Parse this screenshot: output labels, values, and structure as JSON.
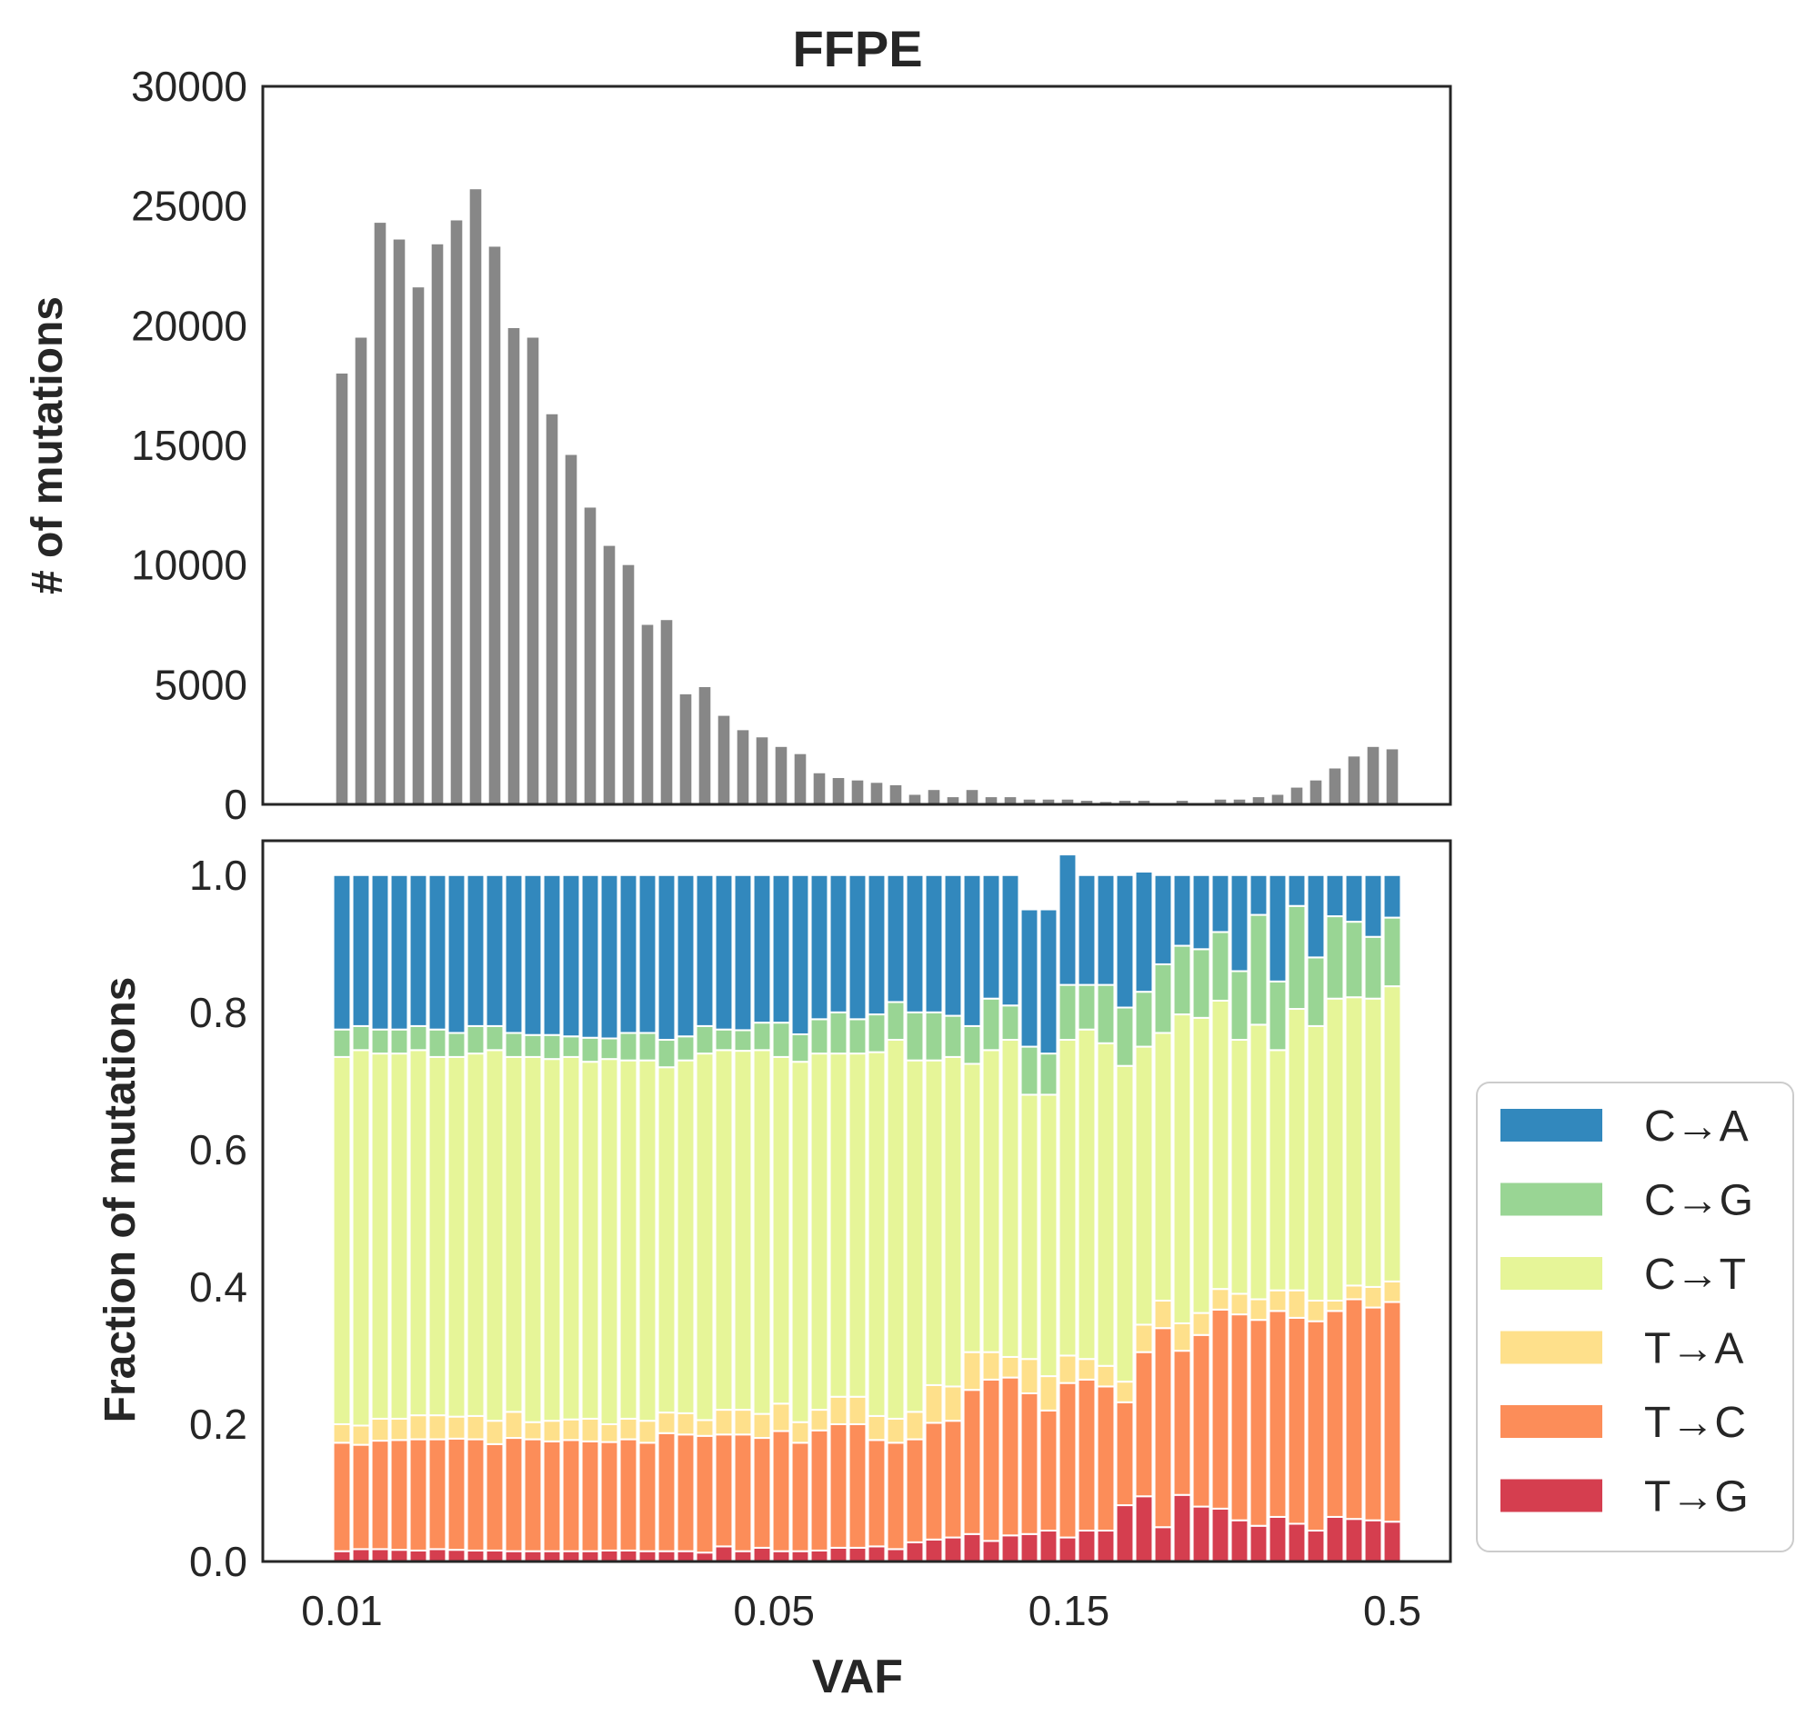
{
  "chart_data": [
    {
      "type": "bar",
      "title": "FFPE",
      "xlabel": "",
      "ylabel": "# of mutations",
      "ylim": [
        0,
        30000
      ],
      "yticks": [
        "0",
        "5000",
        "10000",
        "15000",
        "20000",
        "25000",
        "30000"
      ],
      "bar_color": "#878787",
      "counts": [
        18000,
        19500,
        24300,
        23600,
        21600,
        23400,
        24400,
        25700,
        23300,
        19900,
        19500,
        16300,
        14600,
        12400,
        10800,
        10000,
        7500,
        7700,
        4600,
        4900,
        3700,
        3100,
        2800,
        2400,
        2100,
        1300,
        1100,
        1000,
        900,
        800,
        400,
        600,
        300,
        600,
        300,
        300,
        200,
        200,
        200,
        150,
        100,
        150,
        150,
        0,
        150,
        0,
        200,
        200,
        300,
        400,
        700,
        1000,
        1500,
        2000,
        2400,
        2300
      ],
      "grid": false
    },
    {
      "type": "bar",
      "stacked": true,
      "xlabel": "VAF",
      "ylabel": "Fraction of mutations",
      "ylim": [
        0,
        1.05
      ],
      "yticks": [
        "0.0",
        "0.2",
        "0.4",
        "0.6",
        "0.8",
        "1.0"
      ],
      "x_scale": "log",
      "x_range": [
        0.01,
        0.5
      ],
      "xticks": [
        {
          "value": 0.01,
          "label": "0.01"
        },
        {
          "value": 0.05,
          "label": "0.05"
        },
        {
          "value": 0.15,
          "label": "0.15"
        },
        {
          "value": 0.5,
          "label": "0.5"
        }
      ],
      "legend_position": "outside-right",
      "grid": false,
      "series": [
        {
          "name": "T→G",
          "color": "#d53e4f",
          "values": [
            0.015,
            0.018,
            0.018,
            0.017,
            0.016,
            0.018,
            0.017,
            0.016,
            0.016,
            0.015,
            0.015,
            0.015,
            0.015,
            0.015,
            0.016,
            0.016,
            0.015,
            0.015,
            0.015,
            0.013,
            0.022,
            0.015,
            0.02,
            0.015,
            0.015,
            0.016,
            0.02,
            0.02,
            0.022,
            0.018,
            0.028,
            0.032,
            0.035,
            0.04,
            0.03,
            0.038,
            0.04,
            0.045,
            0.035,
            0.045,
            0.045,
            0.082,
            0.095,
            0.05,
            0.097,
            0.08,
            0.077,
            0.06,
            0.052,
            0.065,
            0.055,
            0.045,
            0.065,
            0.062,
            0.06,
            0.058
          ]
        },
        {
          "name": "T→C",
          "color": "#fc8d59",
          "values": [
            0.158,
            0.152,
            0.158,
            0.16,
            0.162,
            0.16,
            0.162,
            0.162,
            0.155,
            0.165,
            0.163,
            0.16,
            0.162,
            0.16,
            0.158,
            0.162,
            0.158,
            0.172,
            0.17,
            0.17,
            0.163,
            0.17,
            0.16,
            0.175,
            0.158,
            0.175,
            0.18,
            0.18,
            0.155,
            0.155,
            0.15,
            0.17,
            0.17,
            0.21,
            0.235,
            0.23,
            0.205,
            0.175,
            0.225,
            0.22,
            0.21,
            0.15,
            0.21,
            0.29,
            0.21,
            0.25,
            0.29,
            0.3,
            0.3,
            0.3,
            0.3,
            0.305,
            0.3,
            0.32,
            0.31,
            0.32
          ]
        },
        {
          "name": "T→A",
          "color": "#fee08b",
          "values": [
            0.027,
            0.028,
            0.032,
            0.031,
            0.035,
            0.035,
            0.032,
            0.034,
            0.034,
            0.038,
            0.025,
            0.03,
            0.03,
            0.033,
            0.026,
            0.03,
            0.032,
            0.03,
            0.031,
            0.023,
            0.036,
            0.036,
            0.035,
            0.04,
            0.03,
            0.03,
            0.04,
            0.04,
            0.035,
            0.035,
            0.04,
            0.055,
            0.05,
            0.055,
            0.04,
            0.03,
            0.05,
            0.05,
            0.04,
            0.03,
            0.03,
            0.03,
            0.04,
            0.04,
            0.04,
            0.032,
            0.03,
            0.03,
            0.03,
            0.03,
            0.04,
            0.03,
            0.015,
            0.02,
            0.03,
            0.03
          ]
        },
        {
          "name": "C→T",
          "color": "#e6f598",
          "values": [
            0.535,
            0.547,
            0.532,
            0.532,
            0.532,
            0.522,
            0.524,
            0.528,
            0.54,
            0.517,
            0.532,
            0.527,
            0.528,
            0.52,
            0.532,
            0.522,
            0.525,
            0.503,
            0.514,
            0.534,
            0.524,
            0.523,
            0.53,
            0.505,
            0.525,
            0.519,
            0.5,
            0.5,
            0.53,
            0.552,
            0.512,
            0.473,
            0.48,
            0.42,
            0.44,
            0.462,
            0.385,
            0.41,
            0.46,
            0.48,
            0.47,
            0.46,
            0.405,
            0.39,
            0.45,
            0.43,
            0.42,
            0.37,
            0.4,
            0.35,
            0.41,
            0.4,
            0.44,
            0.42,
            0.42,
            0.43
          ]
        },
        {
          "name": "C→G",
          "color": "#99d594",
          "values": [
            0.04,
            0.035,
            0.035,
            0.035,
            0.035,
            0.04,
            0.035,
            0.04,
            0.035,
            0.035,
            0.032,
            0.035,
            0.03,
            0.035,
            0.03,
            0.04,
            0.04,
            0.04,
            0.035,
            0.04,
            0.03,
            0.03,
            0.04,
            0.05,
            0.04,
            0.05,
            0.06,
            0.05,
            0.055,
            0.055,
            0.07,
            0.07,
            0.06,
            0.055,
            0.075,
            0.05,
            0.07,
            0.06,
            0.08,
            0.065,
            0.085,
            0.085,
            0.08,
            0.1,
            0.1,
            0.1,
            0.1,
            0.1,
            0.16,
            0.1,
            0.15,
            0.1,
            0.12,
            0.11,
            0.09,
            0.1
          ]
        },
        {
          "name": "C→A",
          "color": "#3288bd",
          "values": [
            0.225,
            0.22,
            0.225,
            0.225,
            0.22,
            0.225,
            0.23,
            0.22,
            0.22,
            0.23,
            0.233,
            0.233,
            0.235,
            0.237,
            0.238,
            0.23,
            0.23,
            0.24,
            0.235,
            0.22,
            0.225,
            0.226,
            0.215,
            0.215,
            0.232,
            0.21,
            0.2,
            0.21,
            0.203,
            0.185,
            0.2,
            0.2,
            0.205,
            0.22,
            0.18,
            0.19,
            0.2,
            0.21,
            0.19,
            0.16,
            0.16,
            0.193,
            0.175,
            0.13,
            0.103,
            0.108,
            0.083,
            0.14,
            0.058,
            0.155,
            0.045,
            0.12,
            0.06,
            0.068,
            0.09,
            0.062
          ]
        }
      ]
    }
  ]
}
